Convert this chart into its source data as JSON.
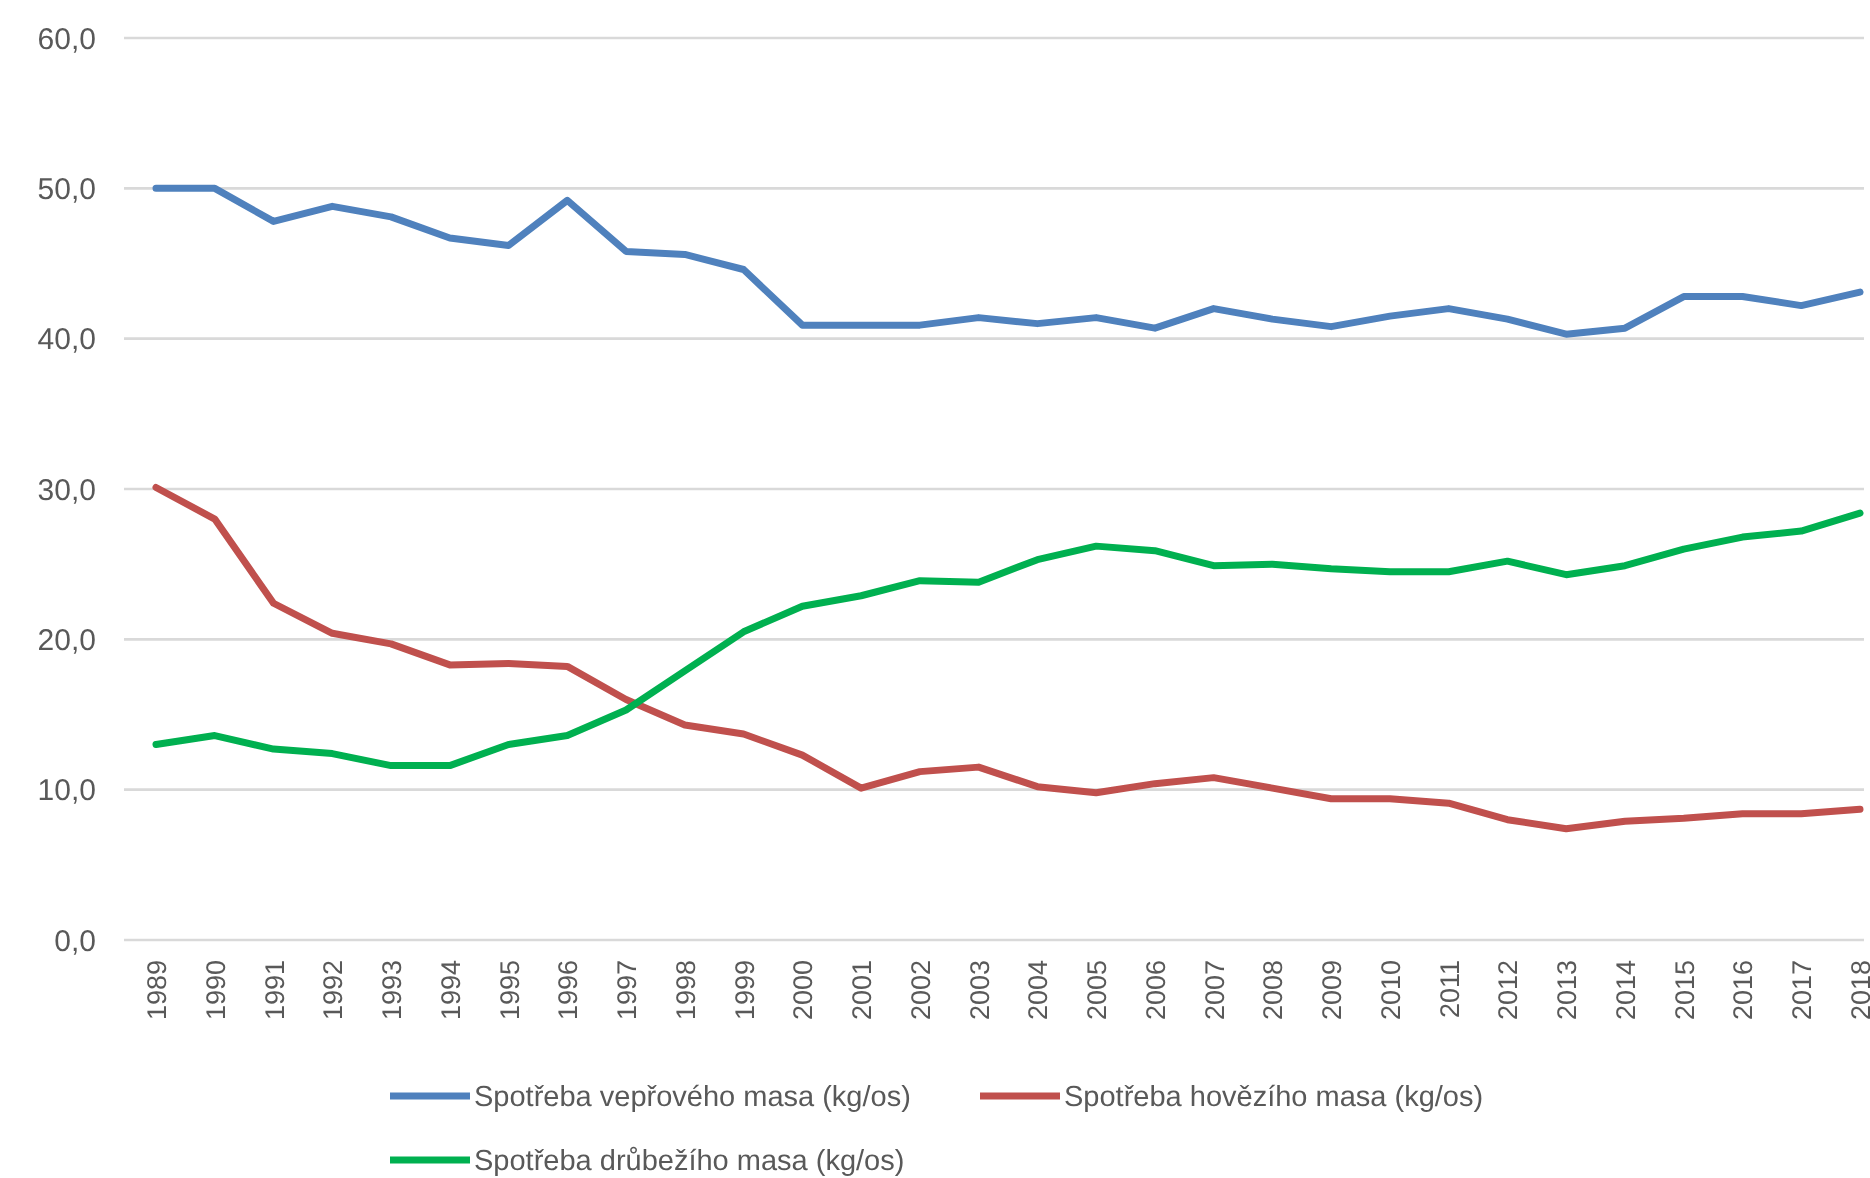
{
  "chart_data": {
    "type": "line",
    "categories": [
      "1989",
      "1990",
      "1991",
      "1992",
      "1993",
      "1994",
      "1995",
      "1996",
      "1997",
      "1998",
      "1999",
      "2000",
      "2001",
      "2002",
      "2003",
      "2004",
      "2005",
      "2006",
      "2007",
      "2008",
      "2009",
      "2010",
      "2011",
      "2012",
      "2013",
      "2014",
      "2015",
      "2016",
      "2017",
      "2018"
    ],
    "series": [
      {
        "name": "Spotřeba vepřového masa (kg/os)",
        "color": "#4f81bd",
        "values": [
          50.0,
          50.0,
          47.8,
          48.8,
          48.1,
          46.7,
          46.2,
          49.2,
          45.8,
          45.6,
          44.6,
          40.9,
          40.9,
          40.9,
          41.4,
          41.0,
          41.4,
          40.7,
          42.0,
          41.3,
          40.8,
          41.5,
          42.0,
          41.3,
          40.3,
          40.7,
          42.8,
          42.8,
          42.2,
          43.1
        ]
      },
      {
        "name": "Spotřeba hovězího masa (kg/os)",
        "color": "#c0504d",
        "values": [
          30.1,
          28.0,
          22.4,
          20.4,
          19.7,
          18.3,
          18.4,
          18.2,
          16.0,
          14.3,
          13.7,
          12.3,
          10.1,
          11.2,
          11.5,
          10.2,
          9.8,
          10.4,
          10.8,
          10.1,
          9.4,
          9.4,
          9.1,
          8.0,
          7.4,
          7.9,
          8.1,
          8.4,
          8.4,
          8.7
        ]
      },
      {
        "name": "Spotřeba drůbežího masa (kg/os)",
        "color": "#00b050",
        "values": [
          13.0,
          13.6,
          12.7,
          12.4,
          11.6,
          11.6,
          13.0,
          13.6,
          15.3,
          17.9,
          20.5,
          22.2,
          22.9,
          23.9,
          23.8,
          25.3,
          26.2,
          25.9,
          24.9,
          25.0,
          24.7,
          24.5,
          24.5,
          25.2,
          24.3,
          24.9,
          26.0,
          26.8,
          27.2,
          28.4
        ]
      }
    ],
    "ylim": [
      0,
      60
    ],
    "yticks": [
      {
        "value": 0,
        "label": "0,0"
      },
      {
        "value": 10,
        "label": "10,0"
      },
      {
        "value": 20,
        "label": "20,0"
      },
      {
        "value": 30,
        "label": "30,0"
      },
      {
        "value": 40,
        "label": "40,0"
      },
      {
        "value": 50,
        "label": "50,0"
      },
      {
        "value": 60,
        "label": "60,0"
      }
    ],
    "grid": "y",
    "legend": "bottom",
    "marker": "none",
    "line_style": "solid"
  }
}
